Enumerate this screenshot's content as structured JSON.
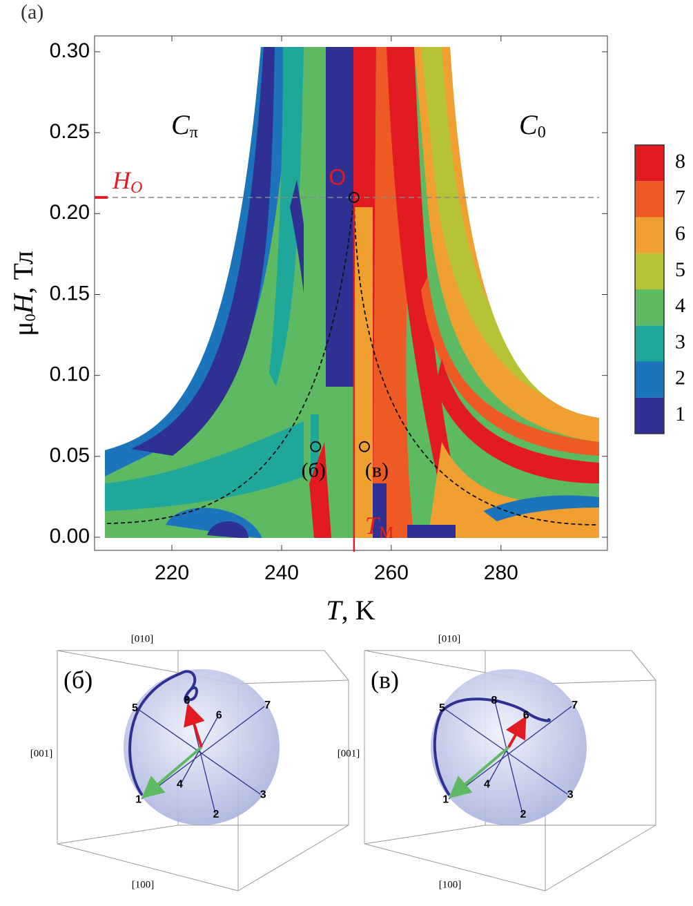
{
  "panel_a": {
    "label": "(a)",
    "x_label": {
      "symbol": "T",
      "unit": ", K"
    },
    "y_label": {
      "mu": "μ",
      "sub": "0",
      "symbol": "H",
      "unit": ", Тл"
    },
    "xlim": [
      205.9,
      299.4
    ],
    "ylim": [
      -0.0081,
      0.3098
    ],
    "xticks": [
      220,
      240,
      260,
      280
    ],
    "yticks": [
      {
        "value": 0,
        "label": "0.00"
      },
      {
        "value": 0.05,
        "label": "0.05"
      },
      {
        "value": 0.1,
        "label": "0.10"
      },
      {
        "value": 0.15,
        "label": "0.15"
      },
      {
        "value": 0.2,
        "label": "0.20"
      },
      {
        "value": 0.25,
        "label": "0.25"
      },
      {
        "value": 0.3,
        "label": "0.30"
      }
    ],
    "phase_left": {
      "main": "C",
      "sub": "π"
    },
    "phase_right": {
      "main": "C",
      "sub": "0"
    },
    "field_marker": {
      "main": "H",
      "sub": "O",
      "value": 0.21
    },
    "temperature_marker": {
      "main": "T",
      "sub": "М",
      "value": 253.2
    },
    "points": [
      {
        "label": "О",
        "T": 253.2,
        "H": 0.21
      },
      {
        "label": "(б)",
        "T": 246.2,
        "H": 0.056
      },
      {
        "label": "(в)",
        "T": 255.1,
        "H": 0.056
      }
    ]
  },
  "colorbar": {
    "levels": [
      1,
      2,
      3,
      4,
      5,
      6,
      7,
      8
    ],
    "colors": [
      "#2e3192",
      "#1c75bc",
      "#1fa89a",
      "#5dba62",
      "#b5c334",
      "#f0a030",
      "#ee5a24",
      "#e21b23"
    ]
  },
  "panel_b": {
    "label": "(б)",
    "axes": [
      "[010]",
      "[001]",
      "[100]"
    ],
    "directions": [
      "1",
      "2",
      "3",
      "4",
      "5",
      "6",
      "7",
      "8"
    ]
  },
  "panel_v": {
    "label": "(в)",
    "axes": [
      "[010]",
      "[001]",
      "[100]"
    ],
    "directions": [
      "1",
      "2",
      "3",
      "4",
      "5",
      "6",
      "7",
      "8"
    ]
  }
}
